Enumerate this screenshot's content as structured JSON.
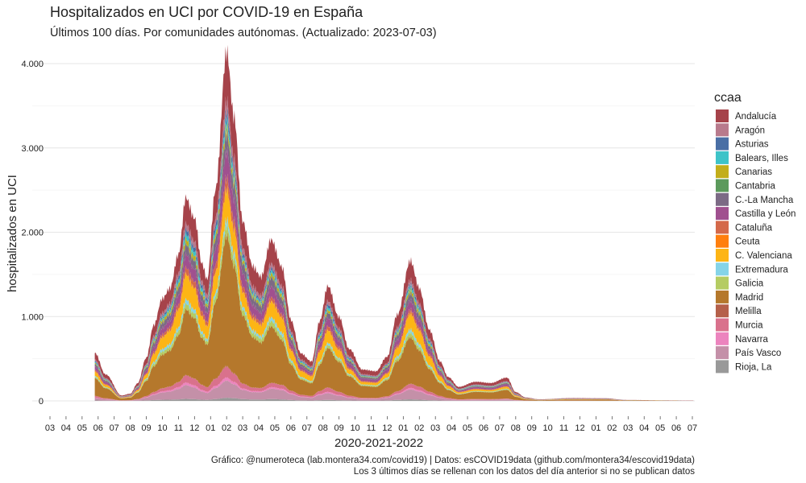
{
  "chart_data": {
    "type": "area",
    "stacked": true,
    "title": "Hospitalizados en UCI por COVID-19 en España",
    "subtitle": "Últimos 100 días. Por comunidades autónomas. (Actualizado: 2023-07-03)",
    "xlabel": "2020-2021-2022",
    "ylabel": "hospitalizados en UCI",
    "caption_line1": "Gráfico: @numeroteca (lab.montera34.com/covid19) | Datos: esCOVID19data (github.com/montera34/escovid19data)",
    "caption_line2": "Los 3 últimos días se rellenan con los datos del día anterior si no se publican datos",
    "ylim": [
      0,
      4000
    ],
    "xlim": [
      "2020-03-01",
      "2023-07-01"
    ],
    "yticks": [
      0,
      1000,
      2000,
      3000,
      4000
    ],
    "ytick_labels": [
      "0",
      "1.000",
      "2.000",
      "3.000",
      "4.000"
    ],
    "xtick_labels": [
      "03",
      "04",
      "05",
      "06",
      "07",
      "08",
      "09",
      "10",
      "11",
      "12",
      "01",
      "02",
      "03",
      "04",
      "05",
      "06",
      "07",
      "08",
      "09",
      "10",
      "11",
      "12",
      "01",
      "02",
      "03",
      "04",
      "05",
      "06",
      "07",
      "08",
      "09",
      "10",
      "11",
      "12",
      "01",
      "02",
      "03",
      "04",
      "05",
      "06",
      "07"
    ],
    "grid": true,
    "legend_title": "ccaa",
    "legend_position": "right",
    "dates": [
      "2020-05-25",
      "2020-06-15",
      "2020-07-15",
      "2020-08-01",
      "2020-08-15",
      "2020-09-01",
      "2020-09-15",
      "2020-10-01",
      "2020-10-15",
      "2020-11-01",
      "2020-11-15",
      "2020-12-01",
      "2020-12-15",
      "2020-12-25",
      "2021-01-10",
      "2021-02-01",
      "2021-02-15",
      "2021-03-01",
      "2021-03-20",
      "2021-04-05",
      "2021-04-25",
      "2021-05-15",
      "2021-06-01",
      "2021-06-20",
      "2021-07-10",
      "2021-07-25",
      "2021-08-10",
      "2021-09-01",
      "2021-09-20",
      "2021-10-15",
      "2021-11-10",
      "2021-12-01",
      "2021-12-20",
      "2022-01-15",
      "2022-02-01",
      "2022-02-20",
      "2022-03-10",
      "2022-03-25",
      "2022-04-15",
      "2022-05-15",
      "2022-06-15",
      "2022-07-15",
      "2022-08-01",
      "2022-08-20",
      "2022-09-15",
      "2022-11-15",
      "2023-01-15",
      "2023-03-01",
      "2023-07-03"
    ],
    "total": [
      560,
      300,
      60,
      80,
      200,
      500,
      900,
      1250,
      1400,
      1850,
      2580,
      2300,
      1700,
      1480,
      2500,
      4000,
      3200,
      2000,
      1500,
      1400,
      1870,
      1600,
      1000,
      600,
      500,
      1000,
      1420,
      1000,
      600,
      350,
      330,
      500,
      1000,
      1700,
      1400,
      900,
      500,
      300,
      170,
      220,
      200,
      260,
      100,
      40,
      20,
      35,
      30,
      10,
      5
    ],
    "series": [
      {
        "name": "Andalucía",
        "color": "#A6434A",
        "share": 0.14
      },
      {
        "name": "Aragón",
        "color": "#B87A8C",
        "share": 0.03
      },
      {
        "name": "Asturias",
        "color": "#4A6FA5",
        "share": 0.02
      },
      {
        "name": "Balears, Illes",
        "color": "#3EC3C8",
        "share": 0.02
      },
      {
        "name": "Canarias",
        "color": "#C3AE1A",
        "share": 0.02
      },
      {
        "name": "Cantabria",
        "color": "#5C9A5C",
        "share": 0.005
      },
      {
        "name": "C.-La Mancha",
        "color": "#7C6A85",
        "share": 0.05
      },
      {
        "name": "Castilla y León",
        "color": "#A0508F",
        "share": 0.07
      },
      {
        "name": "Cataluña",
        "color": "#D4694A",
        "share": 0.03
      },
      {
        "name": "Ceuta",
        "color": "#FF7F0E",
        "share": 0.002
      },
      {
        "name": "C. Valenciana",
        "color": "#FDB515",
        "share": 0.1
      },
      {
        "name": "Extremadura",
        "color": "#85D4E8",
        "share": 0.02
      },
      {
        "name": "Galicia",
        "color": "#B5CC62",
        "share": 0.03
      },
      {
        "name": "Madrid",
        "color": "#B5782C",
        "share": 0.351
      },
      {
        "name": "Melilla",
        "color": "#B5604A",
        "share": 0.002
      },
      {
        "name": "Murcia",
        "color": "#D9718C",
        "share": 0.03
      },
      {
        "name": "Navarra",
        "color": "#EC84BE",
        "share": 0.01
      },
      {
        "name": "País Vasco",
        "color": "#C490A8",
        "share": 0.06
      },
      {
        "name": "Rioja, La",
        "color": "#999999",
        "share": 0.01
      }
    ]
  }
}
